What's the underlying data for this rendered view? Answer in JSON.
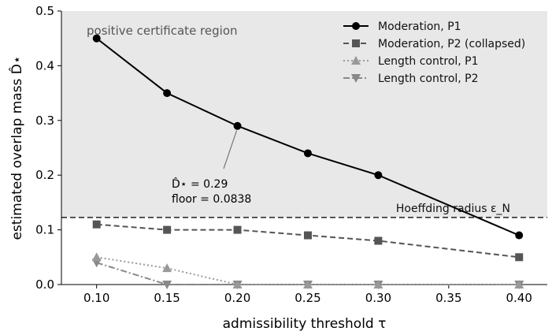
{
  "chart_data": {
    "type": "line",
    "xlabel": "admissibility threshold τ",
    "ylabel": "estimated overlap mass D̂⋆",
    "xlim": [
      0.075,
      0.42
    ],
    "ylim": [
      0.0,
      0.5
    ],
    "xticks": [
      0.1,
      0.15,
      0.2,
      0.25,
      0.3,
      0.35,
      0.4
    ],
    "xtick_labels": [
      "0.10",
      "0.15",
      "0.20",
      "0.25",
      "0.30",
      "0.35",
      "0.40"
    ],
    "yticks": [
      0.0,
      0.1,
      0.2,
      0.3,
      0.4,
      0.5
    ],
    "ytick_labels": [
      "0.0",
      "0.1",
      "0.2",
      "0.3",
      "0.4",
      "0.5"
    ],
    "grid": false,
    "legend_position": "top-right",
    "shaded_region": {
      "label": "positive certificate region",
      "ymin": 0.1227,
      "ymax": 0.5,
      "color": "#e8e8e8"
    },
    "hline": {
      "y": 0.1227,
      "label": "Hoeffding radius ε_N",
      "color": "#222222",
      "style": "dashed"
    },
    "annotation": {
      "line1": "D̂⋆ = 0.29",
      "line2": "floor = 0.0838",
      "target_x": 0.2,
      "target_y": 0.29
    },
    "series": [
      {
        "name": "Moderation, P1",
        "x": [
          0.1,
          0.15,
          0.2,
          0.25,
          0.3,
          0.4
        ],
        "values": [
          0.45,
          0.35,
          0.29,
          0.24,
          0.2,
          0.09
        ],
        "color": "#000000",
        "dash": "solid",
        "marker": "circle"
      },
      {
        "name": "Moderation, P2 (collapsed)",
        "x": [
          0.1,
          0.15,
          0.2,
          0.25,
          0.3,
          0.4
        ],
        "values": [
          0.11,
          0.1,
          0.1,
          0.09,
          0.08,
          0.05
        ],
        "color": "#555555",
        "dash": "dashed",
        "marker": "square"
      },
      {
        "name": "Length control, P1",
        "x": [
          0.1,
          0.15,
          0.2,
          0.25,
          0.3,
          0.4
        ],
        "values": [
          0.05,
          0.03,
          0.0,
          0.0,
          0.0,
          0.0
        ],
        "color": "#999999",
        "dash": "dotted",
        "marker": "triangle-up"
      },
      {
        "name": "Length control, P2",
        "x": [
          0.1,
          0.15,
          0.2,
          0.25,
          0.3,
          0.4
        ],
        "values": [
          0.04,
          0.0,
          0.0,
          0.0,
          0.0,
          0.0
        ],
        "color": "#888888",
        "dash": "dashdot",
        "marker": "triangle-down"
      }
    ]
  }
}
